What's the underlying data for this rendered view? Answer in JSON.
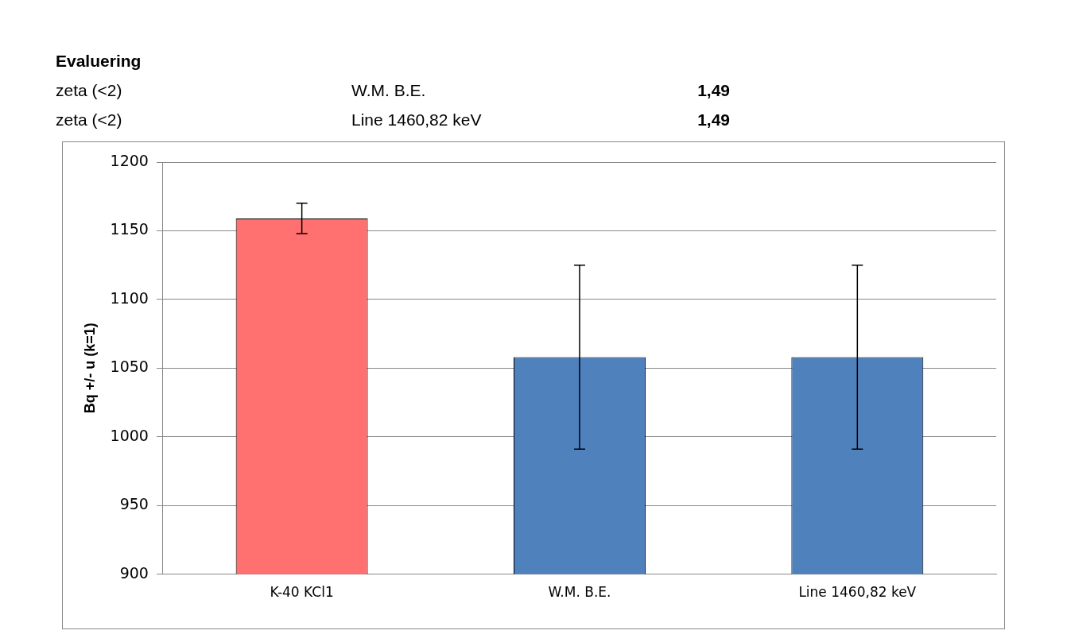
{
  "chart_data": {
    "type": "bar",
    "ylabel": "Bq +/- u (k=1)",
    "categories": [
      "K-40 KCl1",
      "W.M. B.E.",
      "Line 1460,82 keV"
    ],
    "values": [
      1159,
      1058,
      1058
    ],
    "errors": [
      11,
      67,
      67
    ],
    "colors": [
      "#ff7070",
      "#4f81bd",
      "#4f81bd"
    ],
    "ylim": [
      900,
      1200
    ],
    "yticks": [
      900,
      950,
      1000,
      1050,
      1100,
      1150,
      1200
    ],
    "grid": "y",
    "legend": false,
    "annotations": [
      "Evaluering",
      "zeta (<2)",
      "W.M. B.E.",
      "1,49",
      "zeta (<2)",
      "Line 1460,82 keV",
      "1,49"
    ]
  }
}
